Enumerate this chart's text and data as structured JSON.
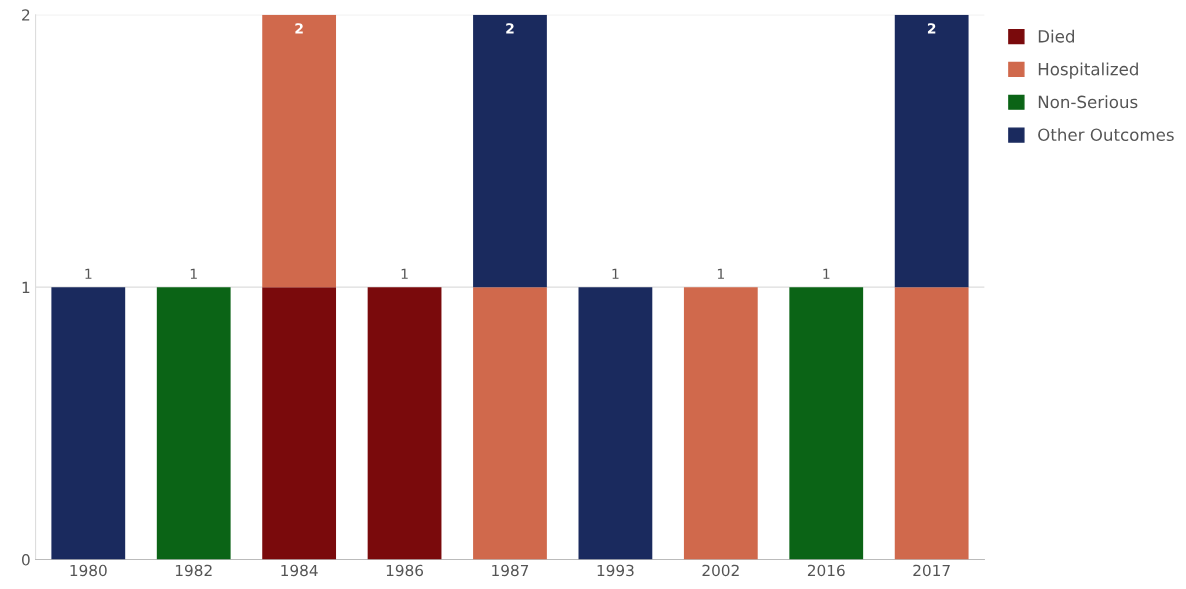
{
  "chart_data": {
    "type": "bar",
    "stacked": true,
    "categories": [
      "1980",
      "1982",
      "1984",
      "1986",
      "1987",
      "1993",
      "2002",
      "2016",
      "2017"
    ],
    "series": [
      {
        "name": "Died",
        "color": "#7a0a0c",
        "values": [
          null,
          null,
          1,
          1,
          null,
          null,
          null,
          null,
          null
        ]
      },
      {
        "name": "Hospitalized",
        "color": "#d0694c",
        "values": [
          null,
          null,
          1,
          null,
          1,
          null,
          1,
          null,
          1
        ]
      },
      {
        "name": "Non-Serious",
        "color": "#0b6416",
        "values": [
          null,
          1,
          null,
          null,
          null,
          null,
          null,
          1,
          null
        ]
      },
      {
        "name": "Other Outcomes",
        "color": "#1a2a5e",
        "values": [
          1,
          null,
          null,
          null,
          1,
          1,
          null,
          null,
          1
        ]
      }
    ],
    "totals": [
      "1",
      "1",
      "2",
      "1",
      "2",
      "1",
      "1",
      "1",
      "2"
    ],
    "ylim": [
      0,
      2
    ],
    "yticks": [
      0,
      1,
      2
    ],
    "grid": "y",
    "legend": "top right"
  }
}
